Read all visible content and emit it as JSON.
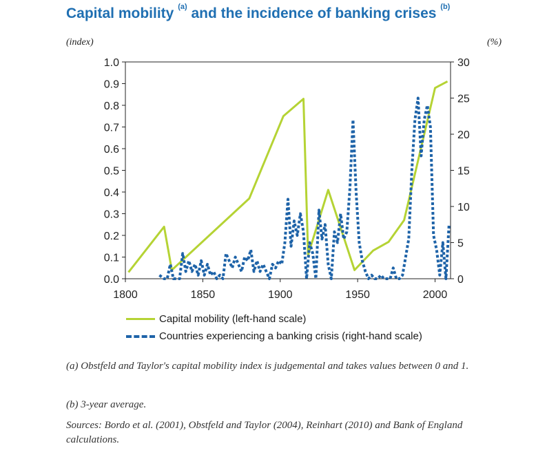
{
  "title": {
    "main_a": "Capital mobility",
    "sup_a": "(a)",
    "main_b": "and the incidence of banking crises",
    "sup_b": "(b)"
  },
  "units": {
    "left": "(index)",
    "right": "(%)"
  },
  "chart_data": {
    "type": "line",
    "xlim": [
      1800,
      2010
    ],
    "x_ticks": [
      1800,
      1850,
      1900,
      1950,
      2000
    ],
    "y_left": {
      "lim": [
        0,
        1.0
      ],
      "ticks": [
        "0.0",
        "0.1",
        "0.2",
        "0.3",
        "0.4",
        "0.5",
        "0.6",
        "0.7",
        "0.8",
        "0.9",
        "1.0"
      ]
    },
    "y_right": {
      "lim": [
        0,
        30
      ],
      "ticks": [
        "0",
        "5",
        "10",
        "15",
        "20",
        "25",
        "30"
      ]
    },
    "grid": false,
    "legend_placement": "bottom",
    "series": [
      {
        "name": "Capital mobility (left-hand scale)",
        "axis": "left",
        "color": "#b5d334",
        "x": [
          1802,
          1825,
          1830,
          1880,
          1902,
          1915,
          1918,
          1931,
          1948,
          1960,
          1970,
          1980,
          2000,
          2008
        ],
        "y": [
          0.03,
          0.24,
          0.04,
          0.37,
          0.75,
          0.83,
          0.11,
          0.41,
          0.04,
          0.13,
          0.17,
          0.27,
          0.88,
          0.91
        ]
      },
      {
        "name": "Countries experiencing a banking crisis (right-hand scale)",
        "axis": "right",
        "color": "#1e63a8",
        "x": [
          1822,
          1825,
          1827,
          1829,
          1831,
          1833,
          1835,
          1837,
          1839,
          1841,
          1843,
          1845,
          1847,
          1849,
          1851,
          1853,
          1855,
          1857,
          1859,
          1861,
          1863,
          1865,
          1867,
          1869,
          1871,
          1873,
          1875,
          1877,
          1879,
          1881,
          1883,
          1885,
          1887,
          1889,
          1891,
          1893,
          1895,
          1897,
          1899,
          1901,
          1903,
          1905,
          1907,
          1909,
          1911,
          1913,
          1915,
          1917,
          1919,
          1921,
          1923,
          1925,
          1927,
          1929,
          1931,
          1933,
          1935,
          1937,
          1939,
          1941,
          1943,
          1945,
          1947,
          1949,
          1951,
          1953,
          1955,
          1957,
          1959,
          1961,
          1963,
          1965,
          1967,
          1969,
          1971,
          1973,
          1975,
          1977,
          1979,
          1981,
          1983,
          1985,
          1987,
          1989,
          1991,
          1993,
          1995,
          1997,
          1999,
          2001,
          2003,
          2005,
          2007,
          2009
        ],
        "y": [
          0.5,
          0,
          0,
          2,
          0,
          0,
          0,
          3.5,
          1,
          2.5,
          1,
          2,
          0.5,
          2.5,
          0.5,
          2,
          0.5,
          1,
          0,
          0.5,
          0,
          3.5,
          2.5,
          1.5,
          3,
          2,
          1,
          3,
          2.5,
          4,
          1,
          2.5,
          1,
          2,
          1,
          0,
          2,
          1.5,
          2.5,
          2,
          5,
          11,
          4.5,
          8,
          6,
          9,
          6.5,
          0,
          5,
          3.5,
          0,
          9.5,
          5.5,
          7.5,
          2,
          0,
          6.5,
          5,
          9,
          5.5,
          6.5,
          12.5,
          22,
          12,
          5,
          2.5,
          1,
          0,
          0.5,
          0,
          0,
          0.5,
          0,
          0,
          0,
          1.5,
          0,
          0,
          0.5,
          3,
          5.5,
          15,
          22,
          25,
          17,
          22,
          24,
          21,
          6,
          4,
          0.5,
          5,
          0,
          7.5
        ]
      }
    ]
  },
  "notes": [
    "(a) Obstfeld and Taylor's capital mobility index is judgemental and takes values between 0 and 1.",
    "(b) 3-year average.",
    "Sources: Bordo et al. (2001), Obstfeld and Taylor (2004), Reinhart (2010) and Bank of England calculations."
  ]
}
